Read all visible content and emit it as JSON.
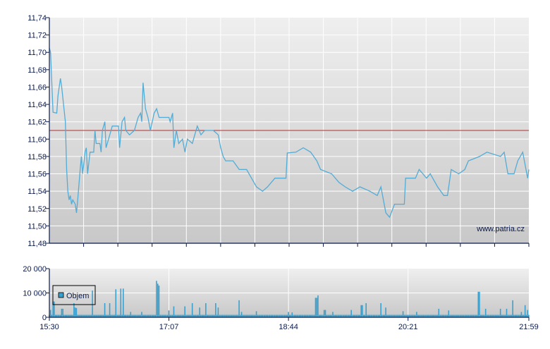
{
  "chart_data": [
    {
      "type": "line",
      "xlim": [
        "15:30",
        "21:59"
      ],
      "ylim": [
        11.48,
        11.74
      ],
      "y_ticks": [
        "11,48",
        "11,50",
        "11,52",
        "11,54",
        "11,56",
        "11,58",
        "11,60",
        "11,62",
        "11,64",
        "11,66",
        "11,68",
        "11,70",
        "11,72",
        "11,74"
      ],
      "grid": true,
      "reference_line": 11.61,
      "watermark": "www.patria.cz",
      "colors": {
        "line": "#52acd6",
        "reference": "#b03030",
        "axis": "#0a1a4a",
        "grid": "#ffffff",
        "bg_top": "#efefef",
        "bg_bottom": "#c8c8c8"
      },
      "series": [
        {
          "points": [
            [
              "15:30",
              11.705
            ],
            [
              "15:31",
              11.7
            ],
            [
              "15:33",
              11.631
            ],
            [
              "15:36",
              11.63
            ],
            [
              "15:37",
              11.65
            ],
            [
              "15:39",
              11.67
            ],
            [
              "15:40",
              11.66
            ],
            [
              "15:43",
              11.62
            ],
            [
              "15:44",
              11.565
            ],
            [
              "15:45",
              11.54
            ],
            [
              "15:46",
              11.53
            ],
            [
              "15:47",
              11.535
            ],
            [
              "15:48",
              11.525
            ],
            [
              "15:49",
              11.53
            ],
            [
              "15:51",
              11.525
            ],
            [
              "15:52",
              11.515
            ],
            [
              "15:53",
              11.53
            ],
            [
              "15:55",
              11.565
            ],
            [
              "15:56",
              11.58
            ],
            [
              "15:57",
              11.56
            ],
            [
              "15:59",
              11.585
            ],
            [
              "16:00",
              11.59
            ],
            [
              "16:01",
              11.56
            ],
            [
              "16:03",
              11.585
            ],
            [
              "16:06",
              11.585
            ],
            [
              "16:07",
              11.61
            ],
            [
              "16:08",
              11.595
            ],
            [
              "16:11",
              11.595
            ],
            [
              "16:12",
              11.585
            ],
            [
              "16:13",
              11.61
            ],
            [
              "16:15",
              11.62
            ],
            [
              "16:16",
              11.59
            ],
            [
              "16:19",
              11.605
            ],
            [
              "16:21",
              11.615
            ],
            [
              "16:26",
              11.615
            ],
            [
              "16:27",
              11.59
            ],
            [
              "16:29",
              11.62
            ],
            [
              "16:31",
              11.625
            ],
            [
              "16:32",
              11.61
            ],
            [
              "16:35",
              11.605
            ],
            [
              "16:39",
              11.61
            ],
            [
              "16:42",
              11.625
            ],
            [
              "16:44",
              11.63
            ],
            [
              "16:45",
              11.62
            ],
            [
              "16:46",
              11.665
            ],
            [
              "16:48",
              11.635
            ],
            [
              "16:50",
              11.625
            ],
            [
              "16:52",
              11.61
            ],
            [
              "16:55",
              11.63
            ],
            [
              "16:57",
              11.635
            ],
            [
              "16:59",
              11.625
            ],
            [
              "17:07",
              11.625
            ],
            [
              "17:08",
              11.62
            ],
            [
              "17:10",
              11.63
            ],
            [
              "17:11",
              11.59
            ],
            [
              "17:13",
              11.61
            ],
            [
              "17:15",
              11.595
            ],
            [
              "17:18",
              11.6
            ],
            [
              "17:20",
              11.585
            ],
            [
              "17:22",
              11.6
            ],
            [
              "17:26",
              11.595
            ],
            [
              "17:27",
              11.6
            ],
            [
              "17:30",
              11.615
            ],
            [
              "17:33",
              11.605
            ],
            [
              "17:36",
              11.61
            ],
            [
              "17:43",
              11.61
            ],
            [
              "17:47",
              11.605
            ],
            [
              "17:49",
              11.59
            ],
            [
              "17:51",
              11.58
            ],
            [
              "17:53",
              11.575
            ],
            [
              "17:59",
              11.575
            ],
            [
              "18:04",
              11.565
            ],
            [
              "18:10",
              11.565
            ],
            [
              "18:18",
              11.545
            ],
            [
              "18:23",
              11.54
            ],
            [
              "18:27",
              11.545
            ],
            [
              "18:33",
              11.555
            ],
            [
              "18:42",
              11.555
            ],
            [
              "18:43",
              11.584
            ],
            [
              "18:50",
              11.585
            ],
            [
              "18:56",
              11.59
            ],
            [
              "19:02",
              11.585
            ],
            [
              "19:07",
              11.575
            ],
            [
              "19:10",
              11.565
            ],
            [
              "19:19",
              11.56
            ],
            [
              "19:25",
              11.55
            ],
            [
              "19:30",
              11.545
            ],
            [
              "19:36",
              11.54
            ],
            [
              "19:42",
              11.545
            ],
            [
              "19:50",
              11.54
            ],
            [
              "19:56",
              11.535
            ],
            [
              "19:59",
              11.545
            ],
            [
              "20:03",
              11.515
            ],
            [
              "20:06",
              11.51
            ],
            [
              "20:10",
              11.525
            ],
            [
              "20:18",
              11.525
            ],
            [
              "20:19",
              11.555
            ],
            [
              "20:27",
              11.555
            ],
            [
              "20:30",
              11.565
            ],
            [
              "20:33",
              11.56
            ],
            [
              "20:36",
              11.555
            ],
            [
              "20:39",
              11.56
            ],
            [
              "20:45",
              11.545
            ],
            [
              "20:50",
              11.535
            ],
            [
              "20:53",
              11.535
            ],
            [
              "20:56",
              11.565
            ],
            [
              "21:02",
              11.56
            ],
            [
              "21:07",
              11.565
            ],
            [
              "21:10",
              11.575
            ],
            [
              "21:19",
              11.58
            ],
            [
              "21:25",
              11.585
            ],
            [
              "21:36",
              11.58
            ],
            [
              "21:39",
              11.585
            ],
            [
              "21:42",
              11.56
            ],
            [
              "21:47",
              11.56
            ],
            [
              "21:50",
              11.575
            ],
            [
              "21:54",
              11.585
            ],
            [
              "21:56",
              11.57
            ],
            [
              "21:58",
              11.555
            ],
            [
              "21:59",
              11.565
            ]
          ]
        }
      ]
    },
    {
      "type": "bar",
      "xlim": [
        "15:30",
        "21:59"
      ],
      "ylim": [
        0,
        20000
      ],
      "y_ticks": [
        "0",
        "10 000",
        "20 000"
      ],
      "x_ticks": [
        "15:30",
        "17:07",
        "18:44",
        "20:21",
        "21:59"
      ],
      "grid": true,
      "legend": {
        "label": "Objem",
        "placement": "top-left"
      },
      "colors": {
        "bar": "#3a9fcc"
      },
      "base_volume": 1000,
      "series": [
        {
          "name": "Objem",
          "points": [
            [
              "15:31",
              3000
            ],
            [
              "15:33",
              6500
            ],
            [
              "15:34",
              6500
            ],
            [
              "15:40",
              3500
            ],
            [
              "15:41",
              3500
            ],
            [
              "15:50",
              5800
            ],
            [
              "15:51",
              4000
            ],
            [
              "15:52",
              3800
            ],
            [
              "16:05",
              11000
            ],
            [
              "16:15",
              5800
            ],
            [
              "16:19",
              5800
            ],
            [
              "16:24",
              11500
            ],
            [
              "16:28",
              11800
            ],
            [
              "16:30",
              11800
            ],
            [
              "16:36",
              2200
            ],
            [
              "16:45",
              2200
            ],
            [
              "16:57",
              15000
            ],
            [
              "16:58",
              13800
            ],
            [
              "16:59",
              13000
            ],
            [
              "17:07",
              2800
            ],
            [
              "17:11",
              4500
            ],
            [
              "17:20",
              4500
            ],
            [
              "17:26",
              5800
            ],
            [
              "17:32",
              4000
            ],
            [
              "17:37",
              5800
            ],
            [
              "17:45",
              5800
            ],
            [
              "17:47",
              4000
            ],
            [
              "18:04",
              7000
            ],
            [
              "18:06",
              2200
            ],
            [
              "18:18",
              2500
            ],
            [
              "18:44",
              2200
            ],
            [
              "18:47",
              2000
            ],
            [
              "19:06",
              8000
            ],
            [
              "19:07",
              8000
            ],
            [
              "19:08",
              9000
            ],
            [
              "19:13",
              3000
            ],
            [
              "19:14",
              3000
            ],
            [
              "19:20",
              2200
            ],
            [
              "19:35",
              3000
            ],
            [
              "19:43",
              5000
            ],
            [
              "19:44",
              5000
            ],
            [
              "19:47",
              5800
            ],
            [
              "19:59",
              5800
            ],
            [
              "20:03",
              4000
            ],
            [
              "20:17",
              2500
            ],
            [
              "20:28",
              2200
            ],
            [
              "20:46",
              3500
            ],
            [
              "20:54",
              2800
            ],
            [
              "21:18",
              10500
            ],
            [
              "21:19",
              10500
            ],
            [
              "21:24",
              3500
            ],
            [
              "21:36",
              3500
            ],
            [
              "21:41",
              3500
            ],
            [
              "21:46",
              7000
            ],
            [
              "21:53",
              2200
            ],
            [
              "21:56",
              5000
            ],
            [
              "21:58",
              3000
            ]
          ]
        }
      ]
    }
  ]
}
